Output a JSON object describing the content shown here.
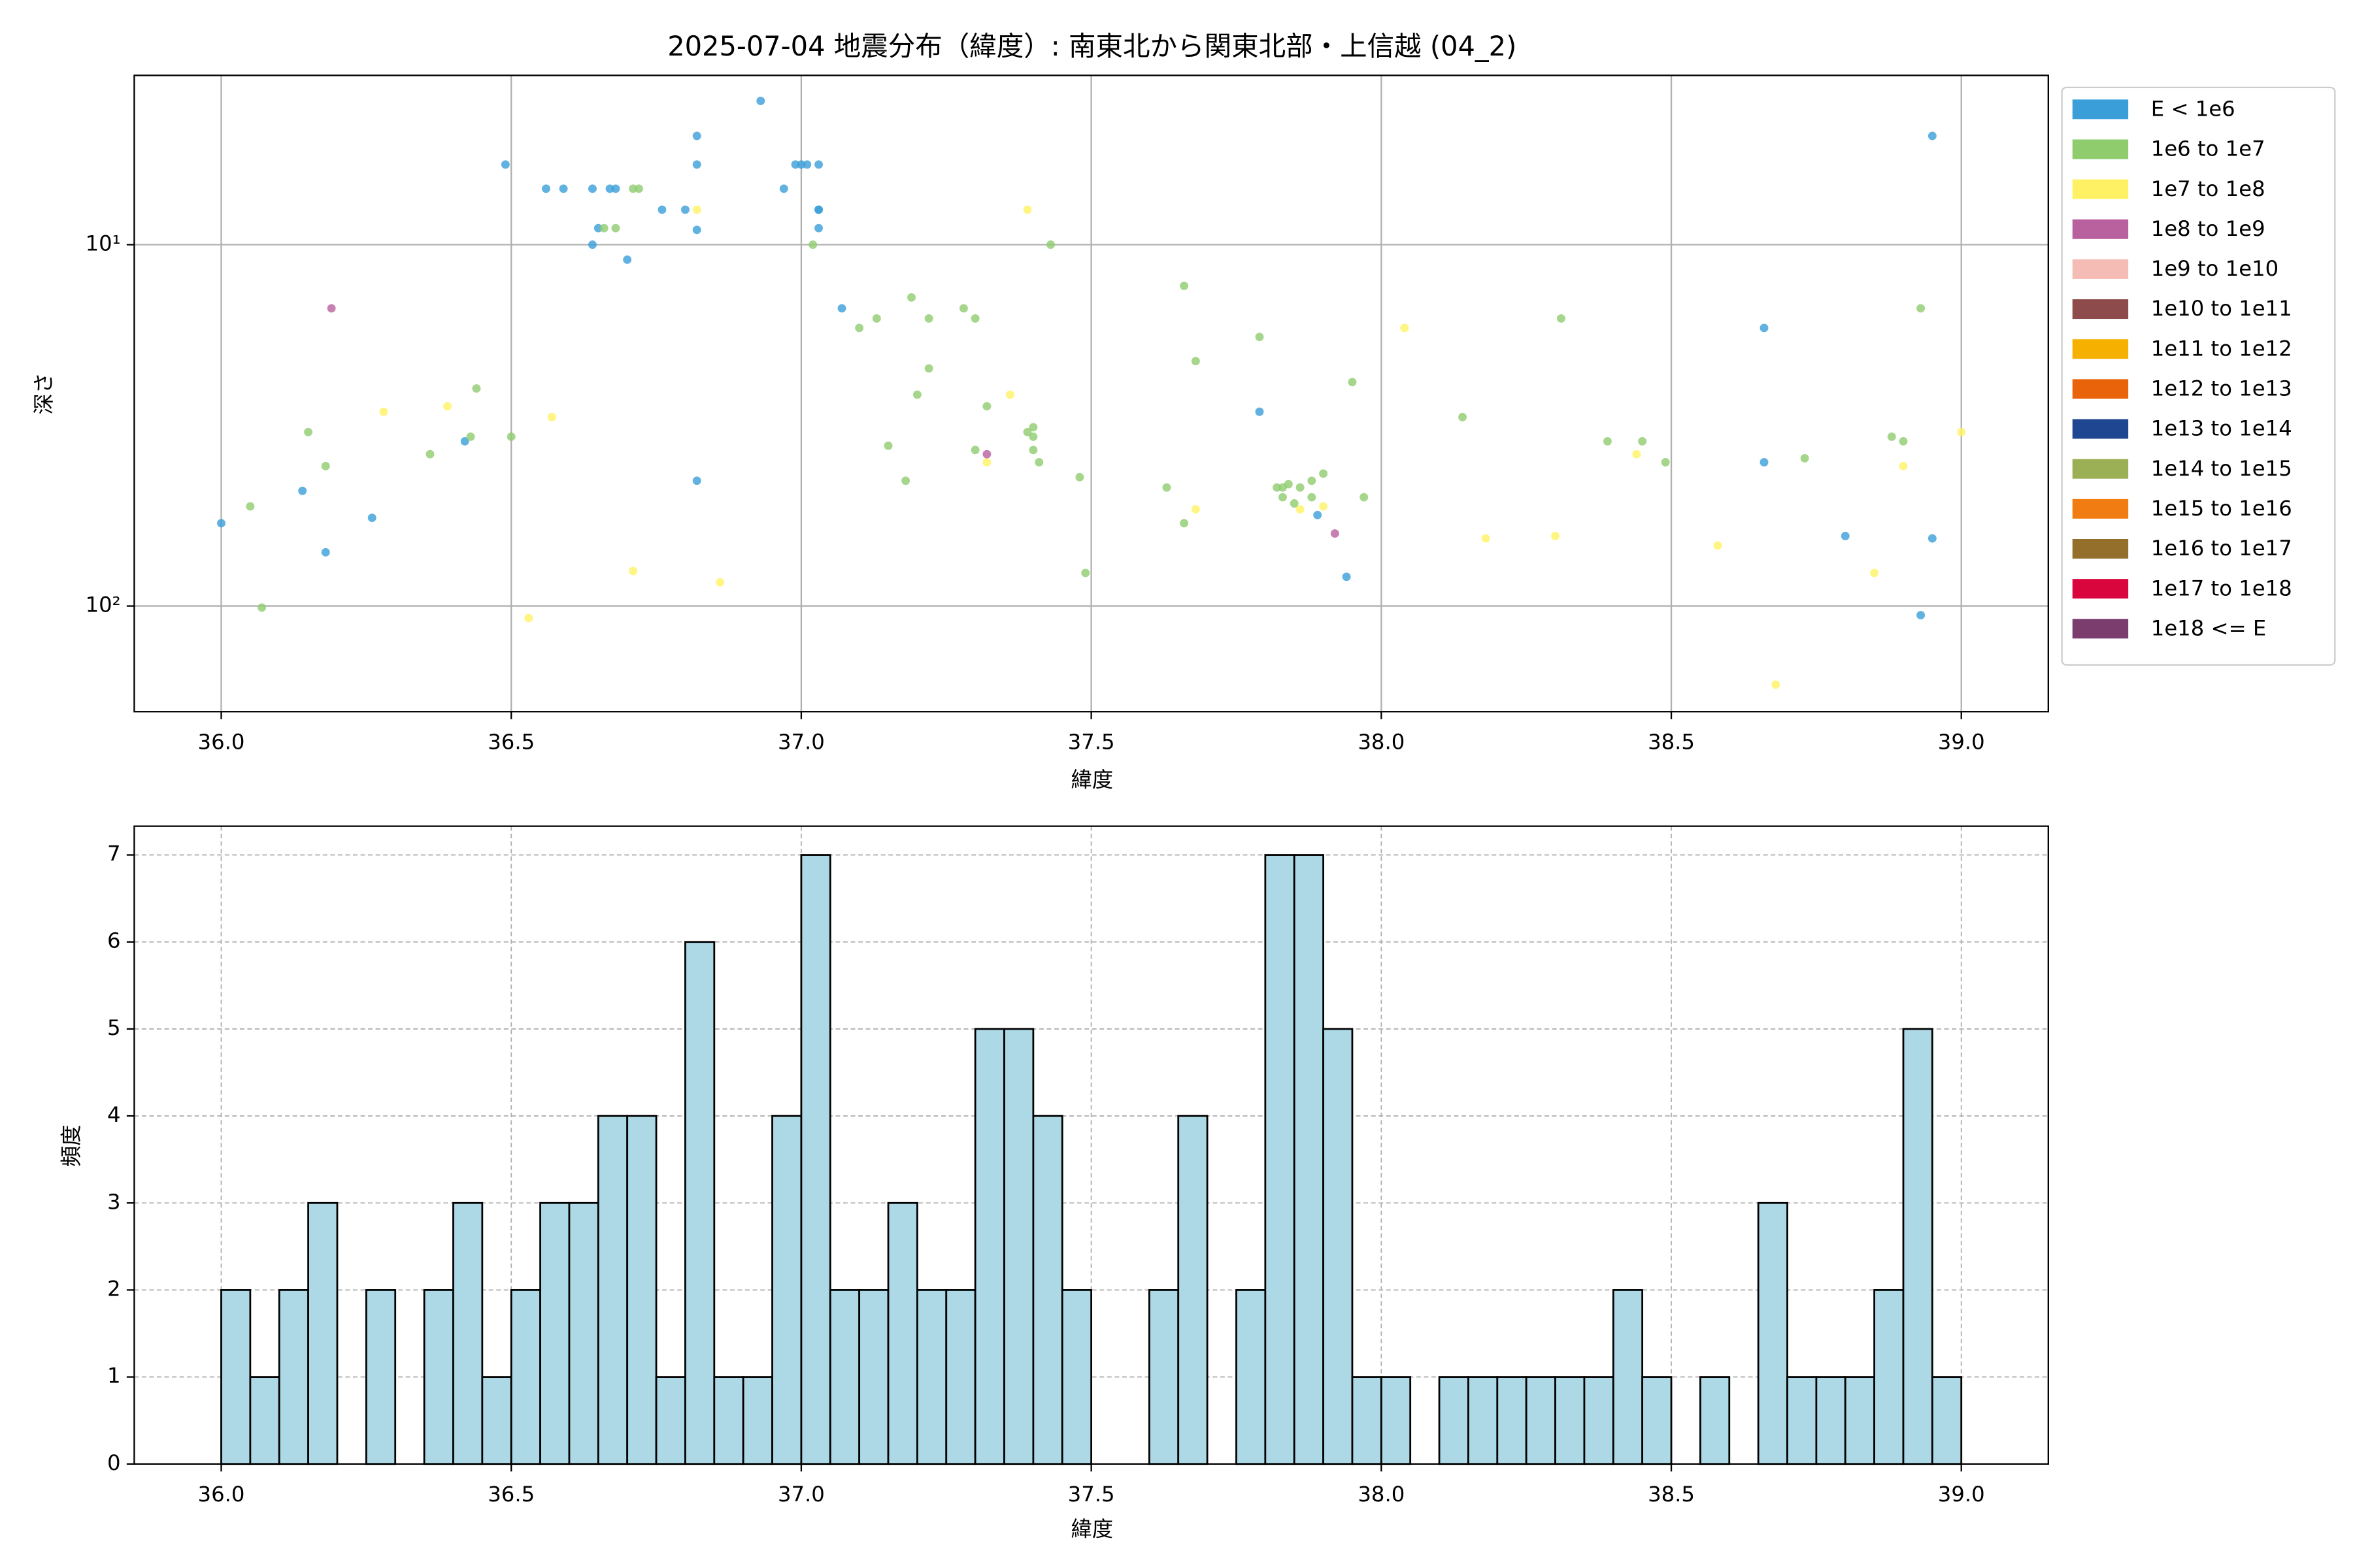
{
  "chart_data": [
    {
      "type": "scatter",
      "title": "2025-07-04 地震分布（緯度）: 南東北から関東北部・上信越 (04_2)",
      "xlabel": "緯度",
      "ylabel": "深さ",
      "xlim": [
        35.85,
        39.15
      ],
      "xticks": [
        {
          "value": 36.0,
          "label": "36.0"
        },
        36.5,
        {
          "value": 37.0,
          "label": "37.0"
        },
        37.5,
        {
          "value": 38.0,
          "label": "38.0"
        },
        38.5,
        {
          "value": 39.0,
          "label": "39.0"
        }
      ],
      "ylim": [
        3.4,
        196
      ],
      "y_scale": "log",
      "y_inverted": true,
      "yticks": [
        {
          "value": 10,
          "label": "10¹"
        },
        {
          "value": 100,
          "label": "10²"
        }
      ],
      "grid": true,
      "grid_linestyle": "solid",
      "legend_position": "outside right",
      "series": [
        {
          "name": "E < 1e6",
          "color": "#3a9fd8",
          "x": [
            36.0,
            36.14,
            36.18,
            36.26,
            36.42,
            36.49,
            36.56,
            36.59,
            36.64,
            36.64,
            36.65,
            36.67,
            36.68,
            36.7,
            36.76,
            36.8,
            36.82,
            36.82,
            36.82,
            36.82,
            36.93,
            36.97,
            36.99,
            37.0,
            37.01,
            37.03,
            37.03,
            37.03,
            37.03,
            37.07,
            37.79,
            37.89,
            37.94,
            38.66,
            38.66,
            38.8,
            38.93,
            38.95,
            38.95
          ],
          "values": [
            59,
            48,
            71,
            57,
            35,
            6.0,
            7.0,
            7.0,
            7.0,
            10,
            9.0,
            7.0,
            7.0,
            11,
            8.0,
            8.0,
            9.1,
            5.0,
            6.0,
            45,
            4.0,
            7.0,
            6.0,
            6.0,
            6.0,
            6.0,
            8.0,
            8.0,
            9.0,
            15,
            29,
            56,
            83,
            17,
            40,
            64,
            106,
            5.0,
            65
          ]
        },
        {
          "name": "1e6 to 1e7",
          "color": "#8fcc6e",
          "x": [
            36.05,
            36.07,
            36.15,
            36.18,
            36.36,
            36.43,
            36.44,
            36.5,
            36.66,
            36.68,
            36.71,
            36.72,
            37.02,
            37.1,
            37.13,
            37.15,
            37.18,
            37.19,
            37.2,
            37.22,
            37.22,
            37.28,
            37.3,
            37.3,
            37.32,
            37.39,
            37.4,
            37.4,
            37.4,
            37.41,
            37.43,
            37.48,
            37.49,
            37.63,
            37.66,
            37.66,
            37.68,
            37.79,
            37.82,
            37.83,
            37.83,
            37.84,
            37.85,
            37.86,
            37.88,
            37.88,
            37.9,
            37.95,
            37.97,
            38.14,
            38.31,
            38.39,
            38.45,
            38.49,
            38.73,
            38.88,
            38.9,
            38.93
          ],
          "values": [
            53,
            101,
            33,
            41,
            38,
            34,
            25,
            34,
            9.0,
            9.0,
            7.0,
            7.0,
            10,
            17,
            16,
            36,
            45,
            14,
            26,
            16,
            22,
            15,
            37,
            16,
            28,
            33,
            32,
            34,
            37,
            40,
            10,
            44,
            81,
            47,
            59,
            13,
            21,
            18,
            47,
            50,
            47,
            46,
            52,
            47,
            45,
            50,
            43,
            24,
            50,
            30,
            16,
            35,
            35,
            40,
            39,
            34,
            35,
            15
          ]
        },
        {
          "name": "1e7 to 1e8",
          "color": "#fef264",
          "x": [
            36.28,
            36.39,
            36.53,
            36.57,
            36.71,
            36.82,
            36.86,
            37.32,
            37.36,
            37.39,
            37.68,
            37.86,
            37.9,
            38.04,
            38.18,
            38.3,
            38.44,
            38.58,
            38.68,
            38.85,
            38.9,
            39.0
          ],
          "values": [
            29,
            28,
            108,
            30,
            80,
            8.0,
            86,
            40,
            26,
            8.0,
            54,
            54,
            53,
            17,
            65,
            64,
            38,
            68,
            165,
            81,
            41,
            33
          ]
        },
        {
          "name": "1e8 to 1e9",
          "color": "#b9609f",
          "x": [
            36.19,
            37.32,
            37.92
          ],
          "values": [
            15,
            38,
            63
          ]
        },
        {
          "name": "1e9 to 1e10",
          "color": "#f5bcb6",
          "x": [],
          "values": []
        },
        {
          "name": "1e10 to 1e11",
          "color": "#8e4b4b",
          "x": [],
          "values": []
        },
        {
          "name": "1e11 to 1e12",
          "color": "#f5b000",
          "x": [],
          "values": []
        },
        {
          "name": "1e12 to 1e13",
          "color": "#e8630a",
          "x": [],
          "values": []
        },
        {
          "name": "1e13 to 1e14",
          "color": "#1f4791",
          "x": [],
          "values": []
        },
        {
          "name": "1e14 to 1e15",
          "color": "#9baf55",
          "x": [],
          "values": []
        },
        {
          "name": "1e15 to 1e16",
          "color": "#f07c12",
          "x": [],
          "values": []
        },
        {
          "name": "1e16 to 1e17",
          "color": "#946e2b",
          "x": [],
          "values": []
        },
        {
          "name": "1e17 to 1e18",
          "color": "#d9063e",
          "x": [],
          "values": []
        },
        {
          "name": "1e18 <= E",
          "color": "#7a3d6e",
          "x": [],
          "values": []
        }
      ]
    },
    {
      "type": "histogram",
      "xlabel": "緯度",
      "ylabel": "頻度",
      "color": "#add8e6",
      "edgecolor": "#000000",
      "xlim": [
        35.85,
        39.15
      ],
      "xticks": [
        {
          "value": 36.0,
          "label": "36.0"
        },
        36.5,
        {
          "value": 37.0,
          "label": "37.0"
        },
        37.5,
        {
          "value": 38.0,
          "label": "38.0"
        },
        38.5,
        {
          "value": 39.0,
          "label": "39.0"
        }
      ],
      "ylim": [
        0,
        7.33
      ],
      "yticks": [
        0,
        1,
        2,
        3,
        4,
        5,
        6,
        7
      ],
      "grid": true,
      "grid_linestyle": "dashed",
      "bins": [
        36.0,
        36.05,
        36.1,
        36.15,
        36.2,
        36.25,
        36.3,
        36.35,
        36.4,
        36.45,
        36.5,
        36.55,
        36.6,
        36.65,
        36.7,
        36.75,
        36.8,
        36.85,
        36.9,
        36.95,
        37.0,
        37.05,
        37.1,
        37.15,
        37.2,
        37.25,
        37.3,
        37.35,
        37.4,
        37.45,
        37.5,
        37.55,
        37.6,
        37.65,
        37.7,
        37.75,
        37.8,
        37.85,
        37.9,
        37.95,
        38.0,
        38.05,
        38.1,
        38.15,
        38.2,
        38.25,
        38.3,
        38.35,
        38.4,
        38.45,
        38.5,
        38.55,
        38.6,
        38.65,
        38.7,
        38.75,
        38.8,
        38.85,
        38.9,
        38.95,
        39.0
      ],
      "values": [
        2,
        1,
        2,
        3,
        0,
        2,
        0,
        2,
        3,
        1,
        2,
        3,
        3,
        4,
        4,
        1,
        6,
        1,
        1,
        4,
        7,
        2,
        2,
        3,
        2,
        2,
        5,
        5,
        4,
        2,
        0,
        0,
        2,
        4,
        0,
        2,
        7,
        7,
        5,
        1,
        1,
        0,
        1,
        1,
        1,
        1,
        1,
        1,
        2,
        1,
        0,
        1,
        0,
        3,
        1,
        1,
        1,
        2,
        5,
        1
      ]
    }
  ]
}
